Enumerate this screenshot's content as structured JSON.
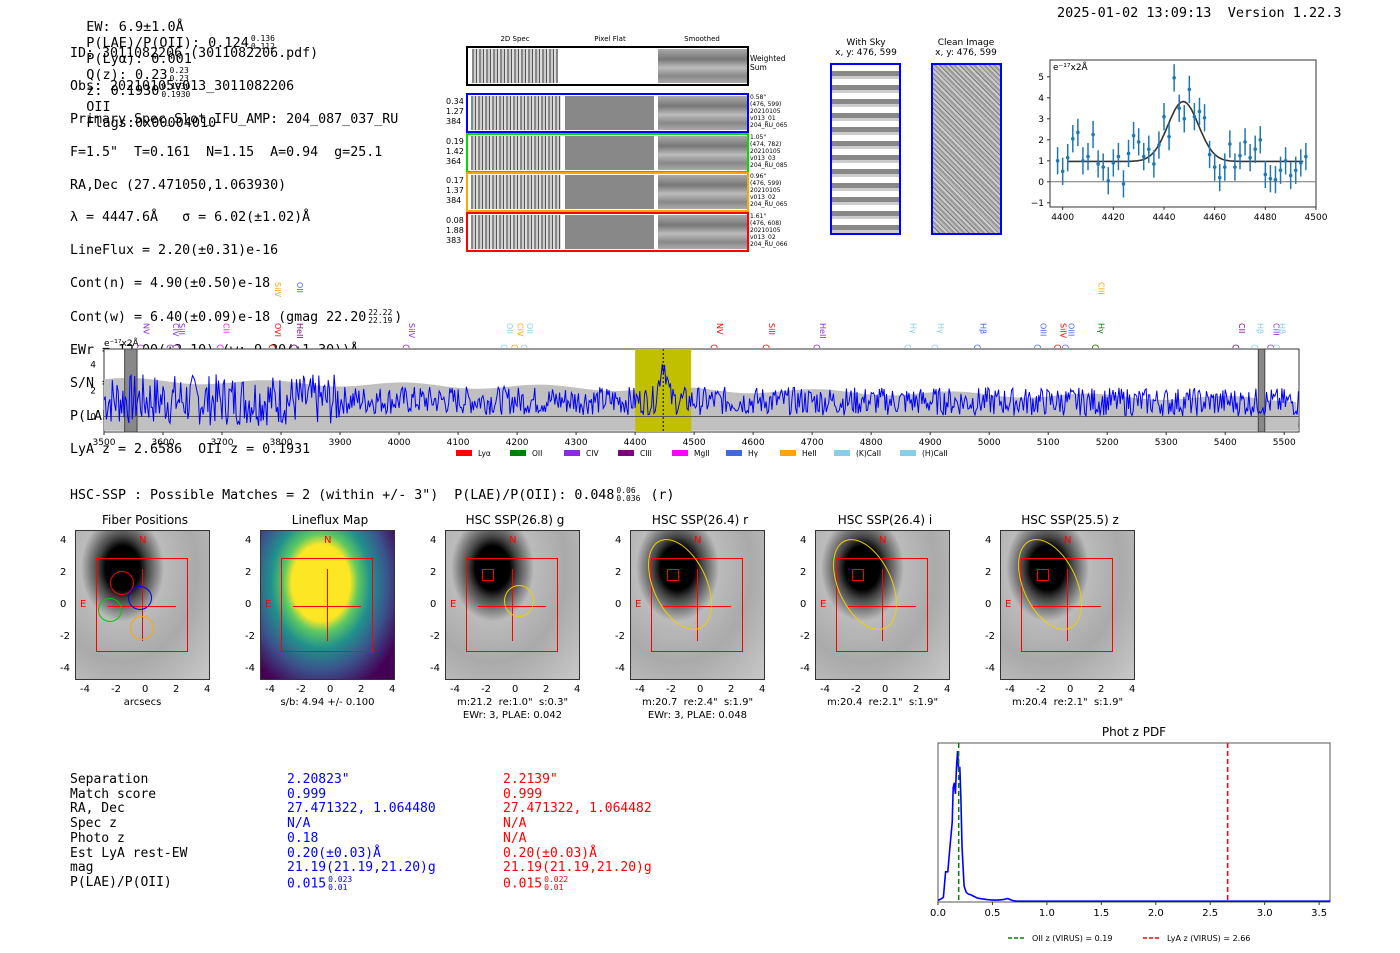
{
  "header": {
    "ew": "EW: 6.9±1.0Å",
    "plae_label": "P(LAE)/P(OII): 0.124",
    "plae_hi": "0.136",
    "plae_lo": "0.112",
    "plya": "P(Lyα): 0.001",
    "qz_label": "Q(z): 0.23",
    "qz_hi": "0.23",
    "qz_lo": "0.23",
    "z_label": "z: 0.1930",
    "z_hi": "0.1930",
    "z_lo": "0.1930",
    "z_line": "OII",
    "flags": "Flags:0x00004010",
    "timestamp": "2025-01-02 13:09:13",
    "version": "Version 1.22.3"
  },
  "info": {
    "id": "ID: 3011082206 (3011082206.pdf)",
    "obs": "Obs: 20210105v013_3011082206",
    "primary": "Primary Spec_Slot_IFU_AMP: 204_087_037_RU",
    "params": "F=1.5\"  T=0.161  N=1.15  A=0.94  g=25.1",
    "radec": "RA,Dec (27.471050,1.063930)",
    "lambda": "λ = 4447.6Å   σ = 6.02(±1.02)Å",
    "lineflux": "LineFlux = 2.20(±0.31)e-16",
    "cont_n": "Cont(n) = 4.90(±0.50)e-18",
    "cont_w": "Cont(w) = 6.40(±0.09)e-18 (gmag 22.20",
    "cont_w_hi": "22.22",
    "cont_w_lo": "22.19",
    "ewr": "EWr = 12.00(±2.10) (w: 9.20(±1.30))Å",
    "sn": "S/N = 9.2(±0.6)  χ² = 1.0(±0.2)",
    "plae": "P(LAE)/P(OII): 0.615",
    "plae_hi": "0.995",
    "plae_lo": "0.446",
    "plae_w": "(w: 0.251",
    "plae_w_hi": "0.262",
    "plae_w_lo": "0.24",
    "redshifts": "LyA z = 2.6586  OII z = 0.1931"
  },
  "spec2d": {
    "columns": [
      "2D Spec",
      "Pixel Flat",
      "Smoothed"
    ],
    "weighted_label": "Weighted\nSum",
    "rows": [
      {
        "color": "#0000ff",
        "left": "0.34\n1.27\n384",
        "note": "0.58\"\n(476, 599)\n20210105\nv013_01\n204_RU_065"
      },
      {
        "color": "#00dd00",
        "left": "0.19\n1.42\n364",
        "note": "1.05\"\n(474, 782)\n20210105\nv013_03\n204_RU_085"
      },
      {
        "color": "#ffa500",
        "left": "0.17\n1.37\n384",
        "note": "0.96\"\n(476, 599)\n20210105\nv013_02\n204_RU_065"
      },
      {
        "color": "#ff0000",
        "left": "0.08\n1.88\n383",
        "note": "1.61\"\n(476, 608)\n20210105\nv013_02\n204_RU_066"
      }
    ]
  },
  "cutouts": {
    "with_sky": "With Sky",
    "with_sky_xy": "x, y: 476, 599",
    "clean": "Clean Image",
    "clean_xy": "x, y: 476, 599"
  },
  "chart_data": [
    {
      "type": "scatter",
      "title": "",
      "ylabel": "e⁻¹⁷x2Å",
      "xlabel": "",
      "xlim": [
        4395,
        4500
      ],
      "ylim": [
        -1.2,
        5.8
      ],
      "xticks": [
        4400,
        4420,
        4440,
        4460,
        4480,
        4500
      ],
      "yticks": [
        -1,
        0,
        1,
        2,
        3,
        4,
        5
      ],
      "x": [
        4398,
        4400,
        4402,
        4404,
        4406,
        4408,
        4410,
        4412,
        4414,
        4416,
        4418,
        4420,
        4422,
        4424,
        4426,
        4428,
        4430,
        4432,
        4434,
        4436,
        4438,
        4440,
        4442,
        4444,
        4446,
        4448,
        4450,
        4452,
        4454,
        4456,
        4458,
        4460,
        4462,
        4464,
        4466,
        4468,
        4470,
        4472,
        4474,
        4476,
        4478,
        4480,
        4482,
        4484,
        4486,
        4488,
        4490,
        4492,
        4494,
        4496
      ],
      "y": [
        1.0,
        0.5,
        1.15,
        2.05,
        2.35,
        1.0,
        1.2,
        2.25,
        0.85,
        0.7,
        0.05,
        0.9,
        1.2,
        -0.1,
        1.35,
        2.2,
        1.9,
        1.2,
        1.55,
        0.85,
        1.75,
        3.1,
        2.15,
        4.95,
        3.5,
        3.0,
        4.4,
        3.1,
        3.35,
        3.05,
        1.3,
        0.7,
        0.2,
        0.7,
        1.8,
        0.7,
        1.25,
        1.9,
        1.15,
        1.55,
        2.0,
        0.35,
        0.15,
        0.1,
        0.55,
        1.0,
        0.3,
        0.55,
        0.9,
        1.2
      ],
      "yerr": 0.65,
      "fit": {
        "type": "gaussian",
        "center": 4447.6,
        "sigma": 6.02,
        "amplitude": 2.85,
        "continuum": 0.97,
        "x_range": [
          4402,
          4495
        ]
      },
      "color": "#1f77b4"
    },
    {
      "type": "line",
      "title": "",
      "ylabel": "e⁻¹⁷x2Å",
      "xlim": [
        3500,
        5525
      ],
      "ylim": [
        -1.2,
        5.2
      ],
      "xticks": [
        3500,
        3600,
        3700,
        3800,
        3900,
        4000,
        4100,
        4200,
        4300,
        4400,
        4500,
        4600,
        4700,
        4800,
        4900,
        5000,
        5100,
        5200,
        5300,
        5400,
        5500
      ],
      "yticks": [
        0,
        2,
        4
      ],
      "highlight": {
        "from": 4400,
        "to": 4495,
        "color": "#c0c000"
      },
      "line_marker": 4447.6,
      "masked": [
        [
          3535,
          3556
        ],
        [
          5456,
          5467
        ]
      ],
      "series_color": "#0000ff",
      "line_labels": [
        {
          "name": "NV",
          "wave": 3562,
          "color": "#8a2be2",
          "row": 1
        },
        {
          "name": "CIV",
          "wave": 3612,
          "color": "#8a2be2",
          "row": 1
        },
        {
          "name": "SiII",
          "wave": 3622,
          "color": "#8a2be2",
          "row": 1
        },
        {
          "name": "CII",
          "wave": 3697,
          "color": "#ff00ff",
          "row": 1
        },
        {
          "name": "SiIV",
          "wave": 3785,
          "color": "#ffa500",
          "row": 0
        },
        {
          "name": "OVI",
          "wave": 3785,
          "color": "#ff0000",
          "row": 1
        },
        {
          "name": "OII",
          "wave": 3822,
          "color": "#4169e1",
          "row": 0
        },
        {
          "name": "HeII",
          "wave": 3822,
          "color": "#800080",
          "row": 1
        },
        {
          "name": "SiIV",
          "wave": 4012,
          "color": "#8a2be2",
          "row": 1
        },
        {
          "name": "OII",
          "wave": 4178,
          "color": "#87ceeb",
          "row": 1
        },
        {
          "name": "CIV",
          "wave": 4196,
          "color": "#ffa500",
          "row": 1
        },
        {
          "name": "OII",
          "wave": 4212,
          "color": "#87ceeb",
          "row": 1
        },
        {
          "name": "NV",
          "wave": 4534,
          "color": "#ff0000",
          "row": 1
        },
        {
          "name": "SiII",
          "wave": 4622,
          "color": "#ff0000",
          "row": 1
        },
        {
          "name": "HeII",
          "wave": 4708,
          "color": "#8a2be2",
          "row": 1
        },
        {
          "name": "Hγ",
          "wave": 4862,
          "color": "#87ceeb",
          "row": 1
        },
        {
          "name": "Hγ",
          "wave": 4908,
          "color": "#87ceeb",
          "row": 1
        },
        {
          "name": "Hβ",
          "wave": 4980,
          "color": "#4169e1",
          "row": 1
        },
        {
          "name": "OIII",
          "wave": 5082,
          "color": "#4169e1",
          "row": 1
        },
        {
          "name": "SiIV",
          "wave": 5116,
          "color": "#ff0000",
          "row": 1
        },
        {
          "name": "OIII",
          "wave": 5129,
          "color": "#4169e1",
          "row": 1
        },
        {
          "name": "CIII",
          "wave": 5180,
          "color": "#ffa500",
          "row": 0
        },
        {
          "name": "Hγ",
          "wave": 5180,
          "color": "#008000",
          "row": 1
        },
        {
          "name": "CII",
          "wave": 5418,
          "color": "#800080",
          "row": 1
        },
        {
          "name": "Hβ",
          "wave": 5450,
          "color": "#87ceeb",
          "row": 1
        },
        {
          "name": "CIII",
          "wave": 5477,
          "color": "#8a2be2",
          "row": 1
        },
        {
          "name": "Hβ",
          "wave": 5487,
          "color": "#87ceeb",
          "row": 1
        }
      ],
      "legend": [
        {
          "label": "Lyα",
          "color": "#ff0000"
        },
        {
          "label": "OII",
          "color": "#008000"
        },
        {
          "label": "CIV",
          "color": "#8a2be2"
        },
        {
          "label": "CIII",
          "color": "#800080"
        },
        {
          "label": "MgII",
          "color": "#ff00ff"
        },
        {
          "label": "Hγ",
          "color": "#4169e1"
        },
        {
          "label": "HeII",
          "color": "#ffa500"
        },
        {
          "label": "(K)CaII",
          "color": "#87ceeb"
        },
        {
          "label": "(H)CaII",
          "color": "#87ceeb"
        }
      ],
      "legend_position": "bottom"
    },
    {
      "type": "line",
      "title": "Phot z PDF",
      "xlim": [
        0,
        3.6
      ],
      "xticks": [
        0.0,
        0.5,
        1.0,
        1.5,
        2.0,
        2.5,
        3.0,
        3.5
      ],
      "x": [
        0,
        0.03,
        0.05,
        0.07,
        0.09,
        0.11,
        0.13,
        0.14,
        0.15,
        0.16,
        0.17,
        0.18,
        0.19,
        0.2,
        0.21,
        0.22,
        0.24,
        0.26,
        0.28,
        0.3,
        0.33,
        0.36,
        0.4,
        0.45,
        0.5,
        0.55,
        0.6,
        0.64,
        0.68,
        0.72,
        1.0,
        2.0,
        3.0,
        3.6
      ],
      "y": [
        0.01,
        0.02,
        0.03,
        0.19,
        0.19,
        0.35,
        0.5,
        0.72,
        0.75,
        0.68,
        0.85,
        0.95,
        0.82,
        0.85,
        0.65,
        0.35,
        0.1,
        0.06,
        0.05,
        0.045,
        0.035,
        0.025,
        0.02,
        0.015,
        0.012,
        0.012,
        0.015,
        0.022,
        0.01,
        0.005,
        0.005,
        0.005,
        0.005,
        0.005
      ],
      "vlines": [
        {
          "x": 0.19,
          "color": "#008000",
          "label": "OII z (VIRUS) = 0.19"
        },
        {
          "x": 2.66,
          "color": "#ff0000",
          "label": "LyA z (VIRUS) = 2.66"
        }
      ],
      "series_color": "#0000ff",
      "legend_position": "bottom"
    }
  ],
  "hsc": {
    "summary": "HSC-SSP : Possible Matches = 2 (within +/- 3\")  P(LAE)/P(OII): 0.048",
    "summary_hi": "0.06",
    "summary_lo": "0.036",
    "summary_band": "(r)",
    "panels": [
      {
        "title": "Fiber Positions",
        "caption": "arcsecs",
        "caption2": ""
      },
      {
        "title": "Lineflux Map",
        "caption": "s/b: 4.94 +/- 0.100",
        "caption2": ""
      },
      {
        "title": "HSC SSP(26.8) g",
        "caption": "m:21.2  re:1.0\"  s:0.3\"",
        "caption2": "EWr: 3, PLAE: 0.042"
      },
      {
        "title": "HSC SSP(26.4) r",
        "caption": "m:20.7  re:2.4\"  s:1.9\"",
        "caption2": "EWr: 3, PLAE: 0.048"
      },
      {
        "title": "HSC SSP(26.4) i",
        "caption": "m:20.4  re:2.1\"  s:1.9\"",
        "caption2": ""
      },
      {
        "title": "HSC SSP(25.5) z",
        "caption": "m:20.4  re:2.1\"  s:1.9\"",
        "caption2": ""
      }
    ],
    "axis_ticks": [
      "-4",
      "-2",
      "0",
      "2",
      "4"
    ],
    "compass_n": "N",
    "compass_e": "E"
  },
  "match_table": {
    "labels": [
      "Separation",
      "Match score",
      "RA, Dec",
      "Spec z",
      "Photo z",
      "Est LyA rest-EW",
      "mag",
      "P(LAE)/P(OII)"
    ],
    "blue": [
      "2.20823\"",
      "0.999",
      "27.471322, 1.064480",
      "N/A",
      "0.18",
      "0.20(±0.03)Å",
      "21.19(21.19,21.20)g",
      "0.015"
    ],
    "blue_plae_hi": "0.023",
    "blue_plae_lo": "0.01",
    "red": [
      "2.2139\"",
      "0.999",
      "27.471322, 1.064482",
      "N/A",
      "N/A",
      "0.20(±0.03)Å",
      "21.19(21.19,21.20)g",
      "0.015"
    ],
    "red_plae_hi": "0.022",
    "red_plae_lo": "0.01",
    "blue_color": "#0000ff",
    "red_color": "#ff0000"
  }
}
